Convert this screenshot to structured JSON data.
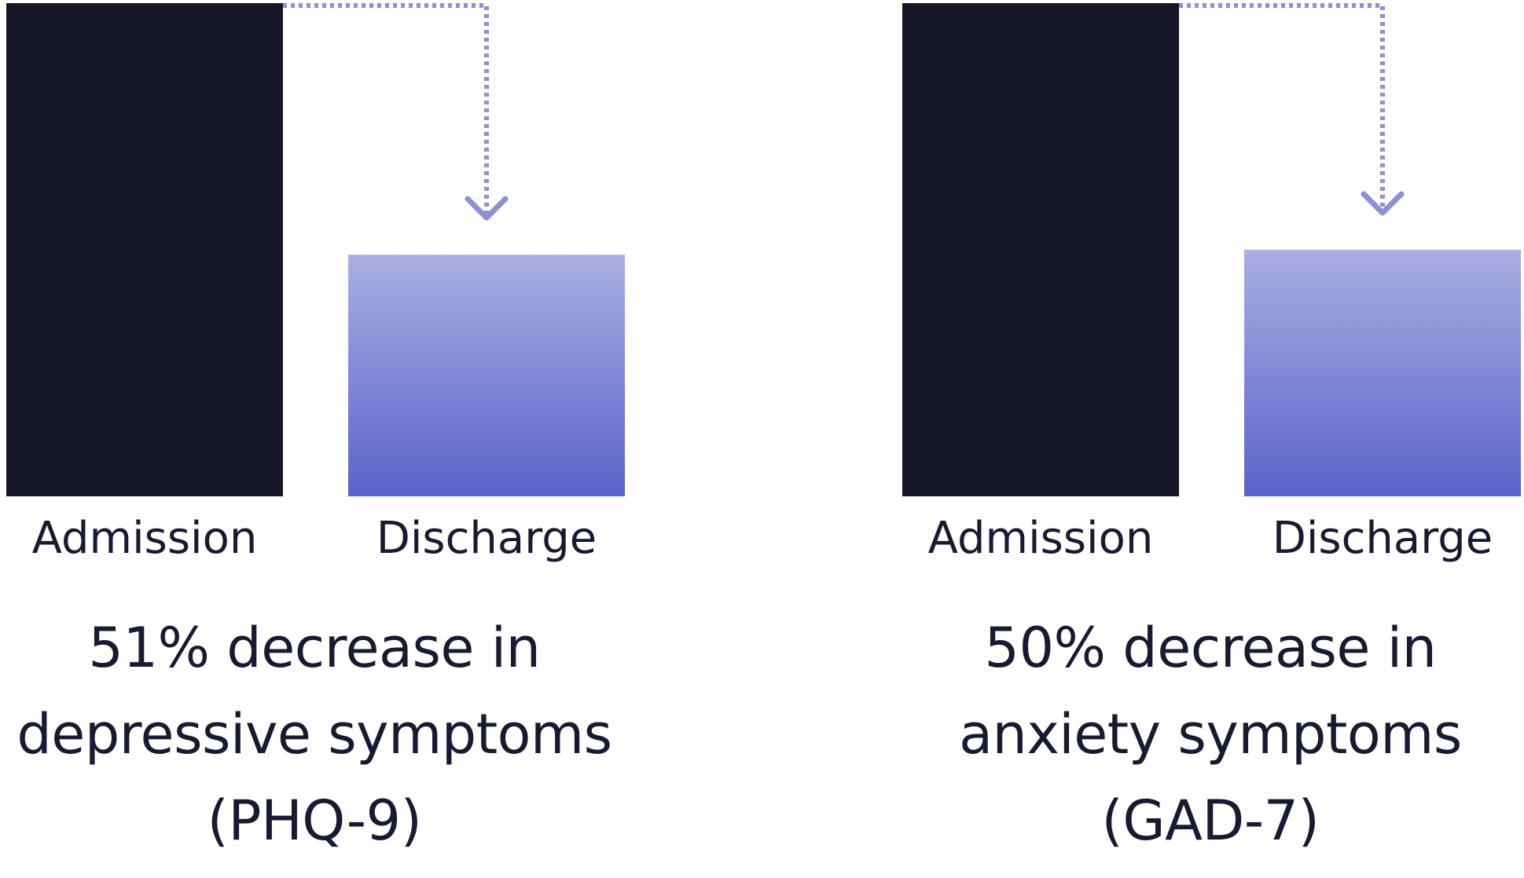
{
  "colors": {
    "admission_bar": "#151729",
    "discharge_bar_top": "#abaee2",
    "discharge_bar_bottom": "#5a63cb",
    "arrow": "#8c90d8",
    "text": "#161a33"
  },
  "chart_data": [
    {
      "type": "bar",
      "categories": [
        "Admission",
        "Discharge"
      ],
      "values": [
        100,
        49
      ],
      "ylim": [
        0,
        100
      ],
      "annotation": "arrow",
      "caption_lines": [
        "51% decrease in",
        "depressive symptoms",
        "(PHQ-9)"
      ]
    },
    {
      "type": "bar",
      "categories": [
        "Admission",
        "Discharge"
      ],
      "values": [
        100,
        50
      ],
      "ylim": [
        0,
        100
      ],
      "annotation": "arrow",
      "caption_lines": [
        "50% decrease in",
        "anxiety symptoms",
        "(GAD-7)"
      ]
    }
  ]
}
